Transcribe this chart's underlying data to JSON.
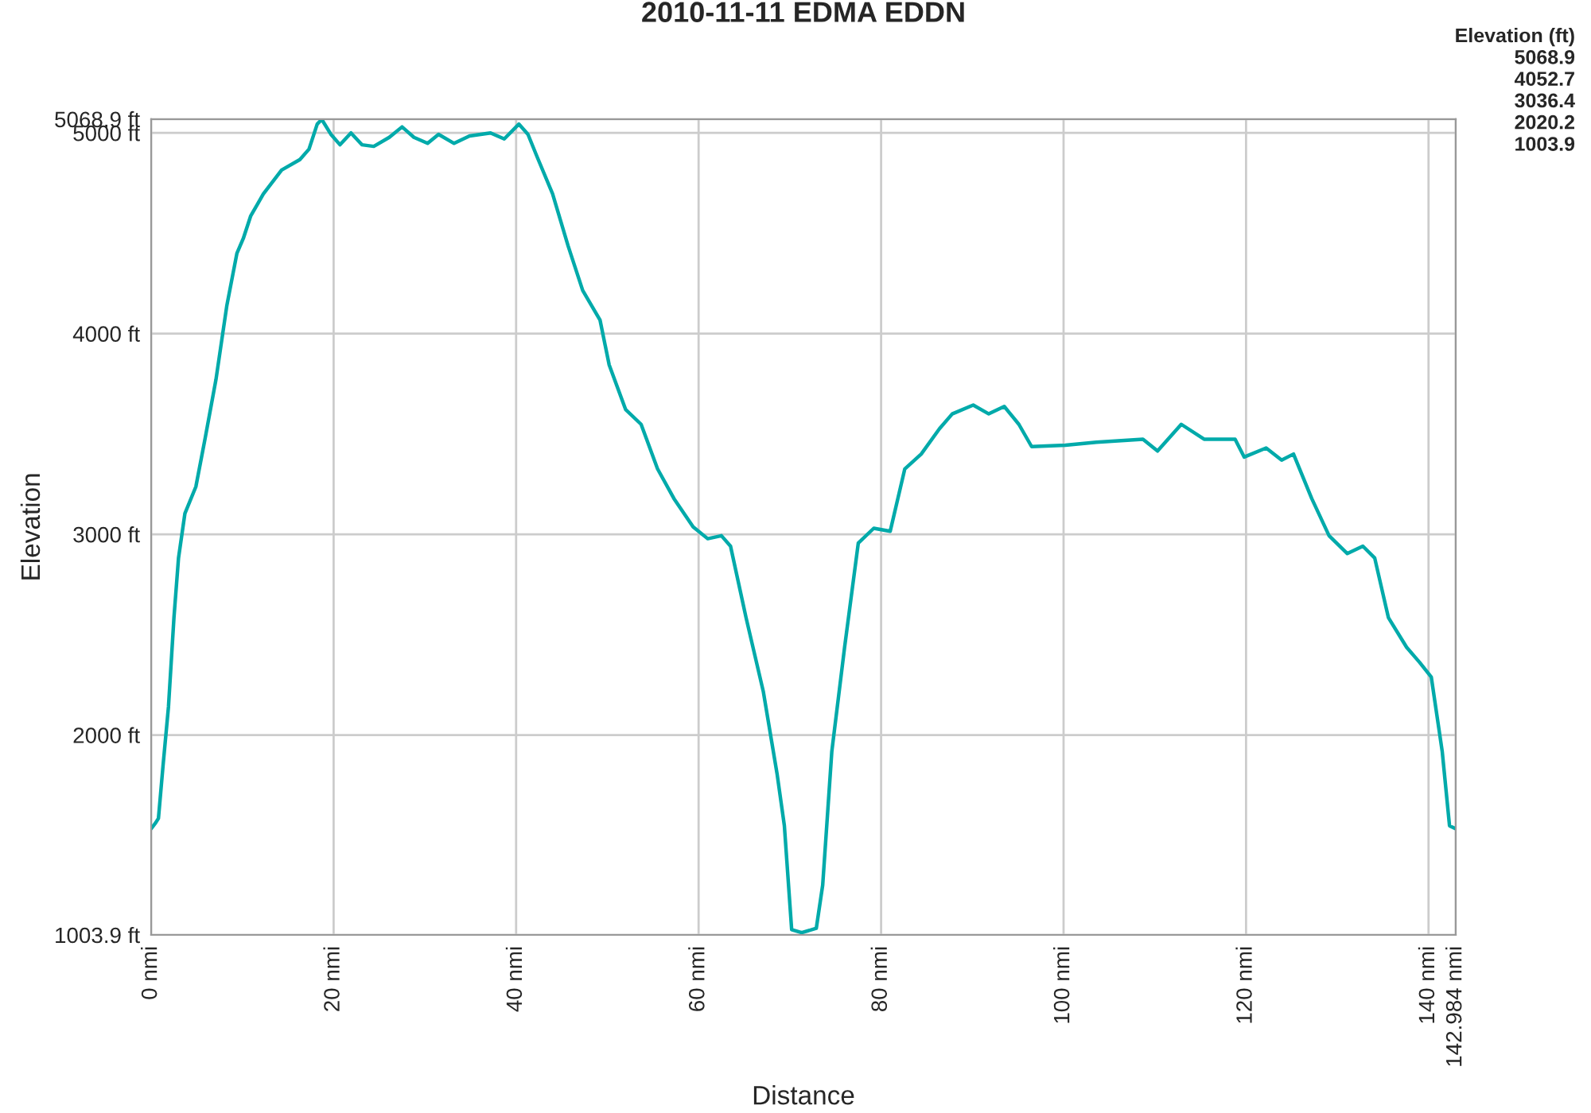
{
  "chart_data": {
    "type": "line",
    "title": "2010-11-11 EDMA EDDN",
    "xlabel": "Distance",
    "ylabel": "Elevation",
    "annotations": [
      "Elevation (ft)",
      "5068.9",
      "4052.7",
      "3036.4",
      "2020.2",
      "1003.9"
    ],
    "color": "#00aaaa",
    "x": [
      0,
      0.5,
      0.8,
      1.3,
      1.9,
      2.5,
      3.0,
      3.7,
      4.9,
      5.9,
      7.1,
      8.3,
      9.4,
      10.1,
      10.9,
      12.3,
      14.3,
      16.3,
      17.3,
      18.2,
      18.7,
      19.7,
      20.7,
      21.9,
      23.1,
      24.4,
      26.1,
      27.5,
      28.8,
      30.3,
      31.5,
      33.2,
      34.9,
      37.2,
      38.7,
      40.3,
      41.3,
      42.3,
      44.0,
      45.7,
      47.3,
      49.2,
      50.2,
      52.0,
      53.7,
      55.5,
      57.3,
      59.4,
      61.0,
      62.5,
      63.5,
      65.2,
      67.1,
      68.6,
      69.4,
      70.2,
      71.3,
      72.9,
      73.6,
      74.6,
      76.0,
      77.5,
      79.2,
      81.0,
      82.6,
      84.4,
      86.4,
      87.8,
      90.1,
      91.8,
      93.5,
      95.1,
      96.5,
      100.2,
      103.6,
      108.7,
      110.3,
      112.9,
      115.4,
      118.8,
      119.8,
      122.2,
      123.9,
      125.2,
      127.2,
      129.1,
      131.1,
      132.8,
      134.1,
      135.6,
      137.6,
      139.0,
      140.3,
      141.5,
      142.3,
      142.984
    ],
    "values": [
      1533,
      1563,
      1585,
      1845,
      2141,
      2585,
      2882,
      3104,
      3237,
      3474,
      3770,
      4141,
      4400,
      4474,
      4585,
      4696,
      4815,
      4867,
      4919,
      5044,
      5067,
      4993,
      4941,
      5000,
      4941,
      4933,
      4978,
      5030,
      4978,
      4948,
      4993,
      4948,
      4985,
      5000,
      4970,
      5044,
      4993,
      4881,
      4696,
      4437,
      4215,
      4067,
      3844,
      3622,
      3548,
      3326,
      3178,
      3037,
      2978,
      2993,
      2941,
      2585,
      2215,
      1807,
      1548,
      1030,
      1015,
      1037,
      1252,
      1918,
      2437,
      2956,
      3030,
      3015,
      3326,
      3400,
      3526,
      3600,
      3644,
      3600,
      3637,
      3548,
      3437,
      3444,
      3459,
      3474,
      3415,
      3548,
      3474,
      3474,
      3385,
      3430,
      3370,
      3400,
      3178,
      2993,
      2904,
      2941,
      2882,
      2585,
      2437,
      2363,
      2289,
      1918,
      1548,
      1533
    ],
    "xlim": [
      0,
      142.984
    ],
    "ylim": [
      1003.9,
      5068.9
    ],
    "xticks": [
      {
        "value": 0,
        "label": "0 nmi"
      },
      {
        "value": 20,
        "label": "20 nmi"
      },
      {
        "value": 40,
        "label": "40 nmi"
      },
      {
        "value": 60,
        "label": "60 nmi"
      },
      {
        "value": 80,
        "label": "80 nmi"
      },
      {
        "value": 100,
        "label": "100 nmi"
      },
      {
        "value": 120,
        "label": "120 nmi"
      },
      {
        "value": 140,
        "label": "140 nmi"
      },
      {
        "value": 142.984,
        "label": "142.984 nmi"
      }
    ],
    "yticks": [
      {
        "value": 1003.9,
        "label": "1003.9 ft"
      },
      {
        "value": 2000,
        "label": "2000 ft"
      },
      {
        "value": 3000,
        "label": "3000 ft"
      },
      {
        "value": 4000,
        "label": "4000 ft"
      },
      {
        "value": 5000,
        "label": "5000 ft"
      },
      {
        "value": 5068.9,
        "label": "5068.9 ft"
      }
    ],
    "grid": true,
    "line_style": "solid"
  }
}
